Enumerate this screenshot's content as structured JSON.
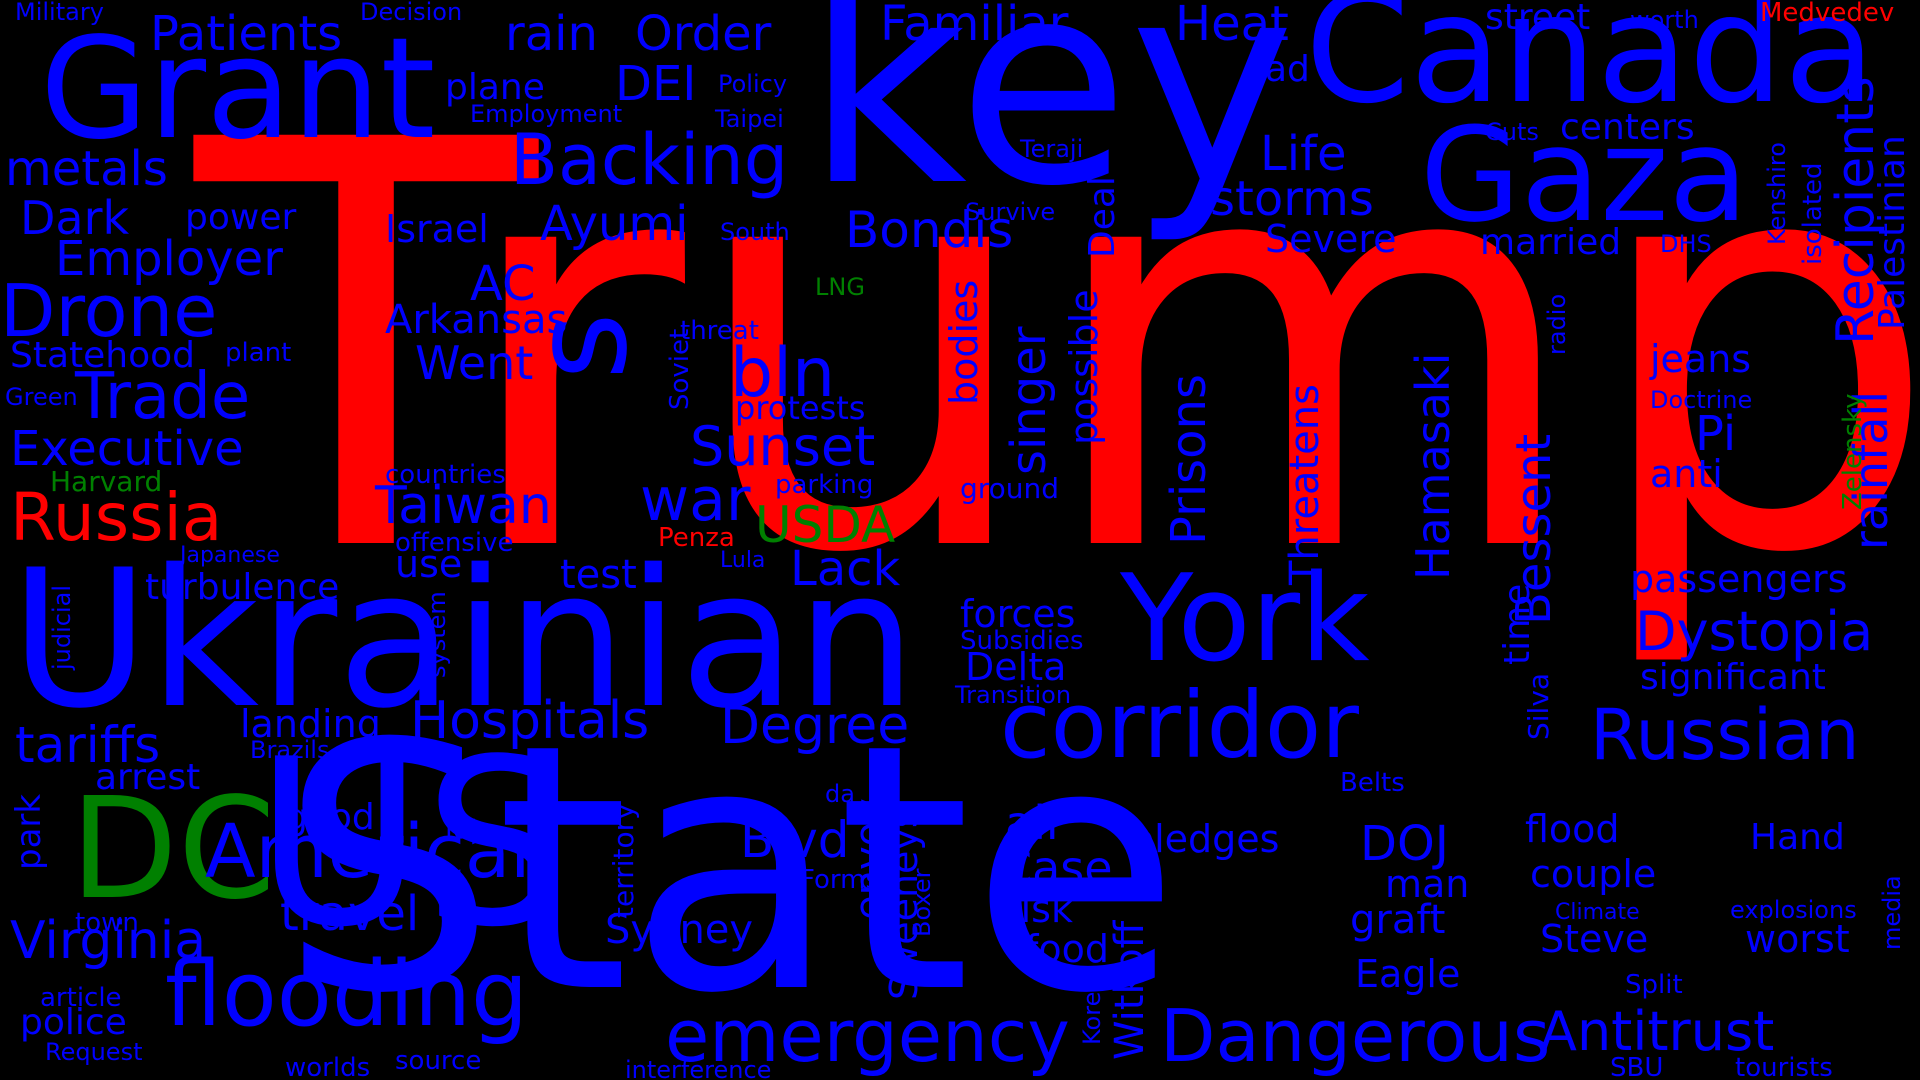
{
  "colors": {
    "red": "#ff0000",
    "blue": "#0000ff",
    "green": "#008000",
    "background": "#000000"
  },
  "words": [
    {
      "text": "Trump",
      "color": "red"
    },
    {
      "text": "State",
      "color": "blue"
    },
    {
      "text": "key",
      "color": "blue"
    },
    {
      "text": "Ukrainian",
      "color": "blue"
    },
    {
      "text": "Canada",
      "color": "blue"
    },
    {
      "text": "Grant",
      "color": "blue"
    },
    {
      "text": "Gaza",
      "color": "blue"
    },
    {
      "text": "York",
      "color": "blue"
    },
    {
      "text": "corridor",
      "color": "blue"
    },
    {
      "text": "DC",
      "color": "green"
    },
    {
      "text": "flooding",
      "color": "blue"
    },
    {
      "text": "US",
      "color": "blue"
    },
    {
      "text": "s",
      "color": "blue"
    },
    {
      "text": "Dangerous",
      "color": "blue"
    },
    {
      "text": "American",
      "color": "blue"
    },
    {
      "text": "emergency",
      "color": "blue"
    },
    {
      "text": "Russian",
      "color": "blue"
    },
    {
      "text": "Hospitals",
      "color": "blue"
    },
    {
      "text": "Backing",
      "color": "blue"
    },
    {
      "text": "Drone",
      "color": "blue"
    },
    {
      "text": "Trade",
      "color": "blue"
    },
    {
      "text": "Russia",
      "color": "red"
    },
    {
      "text": "Antitrust",
      "color": "blue"
    },
    {
      "text": "Dystopia",
      "color": "blue"
    },
    {
      "text": "Degree",
      "color": "blue"
    },
    {
      "text": "Bondis",
      "color": "blue"
    },
    {
      "text": "bln",
      "color": "blue"
    },
    {
      "text": "war",
      "color": "blue"
    },
    {
      "text": "Sunset",
      "color": "blue"
    },
    {
      "text": "Taiwan",
      "color": "blue"
    },
    {
      "text": "Virginia",
      "color": "blue"
    },
    {
      "text": "tariffs",
      "color": "blue"
    },
    {
      "text": "Employer",
      "color": "blue"
    },
    {
      "text": "Executive",
      "color": "blue"
    },
    {
      "text": "metals",
      "color": "blue"
    },
    {
      "text": "Patients",
      "color": "blue"
    },
    {
      "text": "Familiar",
      "color": "blue"
    },
    {
      "text": "Heat",
      "color": "blue"
    },
    {
      "text": "Order",
      "color": "blue"
    },
    {
      "text": "rain",
      "color": "blue"
    },
    {
      "text": "DEI",
      "color": "blue"
    },
    {
      "text": "Ayumi",
      "color": "blue"
    },
    {
      "text": "Dark",
      "color": "blue"
    },
    {
      "text": "storms",
      "color": "blue"
    },
    {
      "text": "Life",
      "color": "blue"
    },
    {
      "text": "Went",
      "color": "blue"
    },
    {
      "text": "AC",
      "color": "blue"
    },
    {
      "text": "Case",
      "color": "blue"
    },
    {
      "text": "Blvd",
      "color": "blue"
    },
    {
      "text": "USDA",
      "color": "green"
    },
    {
      "text": "Lack",
      "color": "blue"
    },
    {
      "text": "travel",
      "color": "blue"
    },
    {
      "text": "Arkansas",
      "color": "blue"
    },
    {
      "text": "DOJ",
      "color": "blue"
    },
    {
      "text": "air",
      "color": "blue"
    },
    {
      "text": "Statehood",
      "color": "blue"
    },
    {
      "text": "turbulence",
      "color": "blue"
    },
    {
      "text": "Sydney",
      "color": "blue"
    },
    {
      "text": "landing",
      "color": "blue"
    },
    {
      "text": "Israel",
      "color": "blue"
    },
    {
      "text": "power",
      "color": "blue"
    },
    {
      "text": "plane",
      "color": "blue"
    },
    {
      "text": "Severe",
      "color": "blue"
    },
    {
      "text": "married",
      "color": "blue"
    },
    {
      "text": "street",
      "color": "blue"
    },
    {
      "text": "centers",
      "color": "blue"
    },
    {
      "text": "jeans",
      "color": "blue"
    },
    {
      "text": "Pi",
      "color": "blue"
    },
    {
      "text": "anti",
      "color": "blue"
    },
    {
      "text": "passengers",
      "color": "blue"
    },
    {
      "text": "significant",
      "color": "blue"
    },
    {
      "text": "flood",
      "color": "blue"
    },
    {
      "text": "couple",
      "color": "blue"
    },
    {
      "text": "Steve",
      "color": "blue"
    },
    {
      "text": "Eagle",
      "color": "blue"
    },
    {
      "text": "graft",
      "color": "blue"
    },
    {
      "text": "man",
      "color": "blue"
    },
    {
      "text": "worst",
      "color": "blue"
    },
    {
      "text": "Hand",
      "color": "blue"
    },
    {
      "text": "pledges",
      "color": "blue"
    },
    {
      "text": "risk",
      "color": "blue"
    },
    {
      "text": "food",
      "color": "blue"
    },
    {
      "text": "forces",
      "color": "blue"
    },
    {
      "text": "Delta",
      "color": "blue"
    },
    {
      "text": "test",
      "color": "blue"
    },
    {
      "text": "use",
      "color": "blue"
    },
    {
      "text": "protests",
      "color": "blue"
    },
    {
      "text": "arrest",
      "color": "blue"
    },
    {
      "text": "good",
      "color": "blue"
    },
    {
      "text": "police",
      "color": "blue"
    },
    {
      "text": "Harvard",
      "color": "green"
    },
    {
      "text": "Penza",
      "color": "red"
    },
    {
      "text": "Medvedev",
      "color": "red"
    },
    {
      "text": "LNG",
      "color": "green"
    },
    {
      "text": "Green",
      "color": "blue"
    },
    {
      "text": "plant",
      "color": "blue"
    },
    {
      "text": "threat",
      "color": "blue"
    },
    {
      "text": "South",
      "color": "blue"
    },
    {
      "text": "Survive",
      "color": "blue"
    },
    {
      "text": "Teraji",
      "color": "blue"
    },
    {
      "text": "Policy",
      "color": "blue"
    },
    {
      "text": "Taipei",
      "color": "blue"
    },
    {
      "text": "Employment",
      "color": "blue"
    },
    {
      "text": "Military",
      "color": "blue"
    },
    {
      "text": "Decision",
      "color": "blue"
    },
    {
      "text": "ad",
      "color": "blue"
    },
    {
      "text": "worth",
      "color": "blue"
    },
    {
      "text": "Cuts",
      "color": "blue"
    },
    {
      "text": "DHS",
      "color": "blue"
    },
    {
      "text": "Doctrine",
      "color": "blue"
    },
    {
      "text": "countries",
      "color": "blue"
    },
    {
      "text": "offensive",
      "color": "blue"
    },
    {
      "text": "Japanese",
      "color": "blue"
    },
    {
      "text": "parking",
      "color": "blue"
    },
    {
      "text": "ground",
      "color": "blue"
    },
    {
      "text": "Lula",
      "color": "blue"
    },
    {
      "text": "Subsidies",
      "color": "blue"
    },
    {
      "text": "Transition",
      "color": "blue"
    },
    {
      "text": "Brazils",
      "color": "blue"
    },
    {
      "text": "da",
      "color": "blue"
    },
    {
      "text": "lot",
      "color": "blue"
    },
    {
      "text": "town",
      "color": "blue"
    },
    {
      "text": "article",
      "color": "blue"
    },
    {
      "text": "Request",
      "color": "blue"
    },
    {
      "text": "worlds",
      "color": "blue"
    },
    {
      "text": "source",
      "color": "blue"
    },
    {
      "text": "interference",
      "color": "blue"
    },
    {
      "text": "Forms",
      "color": "blue"
    },
    {
      "text": "Belts",
      "color": "blue"
    },
    {
      "text": "Climate",
      "color": "blue"
    },
    {
      "text": "Split",
      "color": "blue"
    },
    {
      "text": "explosions",
      "color": "blue"
    },
    {
      "text": "SBU",
      "color": "blue"
    },
    {
      "text": "tourists",
      "color": "blue"
    },
    {
      "text": "Recipients",
      "color": "blue"
    },
    {
      "text": "Palestinian",
      "color": "blue"
    },
    {
      "text": "rainfall",
      "color": "blue"
    },
    {
      "text": "Zelensky",
      "color": "green"
    },
    {
      "text": "isolated",
      "color": "blue"
    },
    {
      "text": "Kenshiro",
      "color": "blue"
    },
    {
      "text": "radio",
      "color": "blue"
    },
    {
      "text": "Bessent",
      "color": "blue"
    },
    {
      "text": "Hamasaki",
      "color": "blue"
    },
    {
      "text": "Threatens",
      "color": "blue"
    },
    {
      "text": "Prisons",
      "color": "blue"
    },
    {
      "text": "possible",
      "color": "blue"
    },
    {
      "text": "singer",
      "color": "blue"
    },
    {
      "text": "bodies",
      "color": "blue"
    },
    {
      "text": "Deal",
      "color": "blue"
    },
    {
      "text": "time",
      "color": "blue"
    },
    {
      "text": "Silva",
      "color": "blue"
    },
    {
      "text": "envoy",
      "color": "blue"
    },
    {
      "text": "Sweeneys",
      "color": "blue"
    },
    {
      "text": "Witkoff",
      "color": "blue"
    },
    {
      "text": "Boxer",
      "color": "blue"
    },
    {
      "text": "Korea",
      "color": "blue"
    },
    {
      "text": "territory",
      "color": "blue"
    },
    {
      "text": "system",
      "color": "blue"
    },
    {
      "text": "judicial",
      "color": "blue"
    },
    {
      "text": "park",
      "color": "blue"
    },
    {
      "text": "Soviet",
      "color": "blue"
    },
    {
      "text": "media",
      "color": "blue"
    }
  ]
}
